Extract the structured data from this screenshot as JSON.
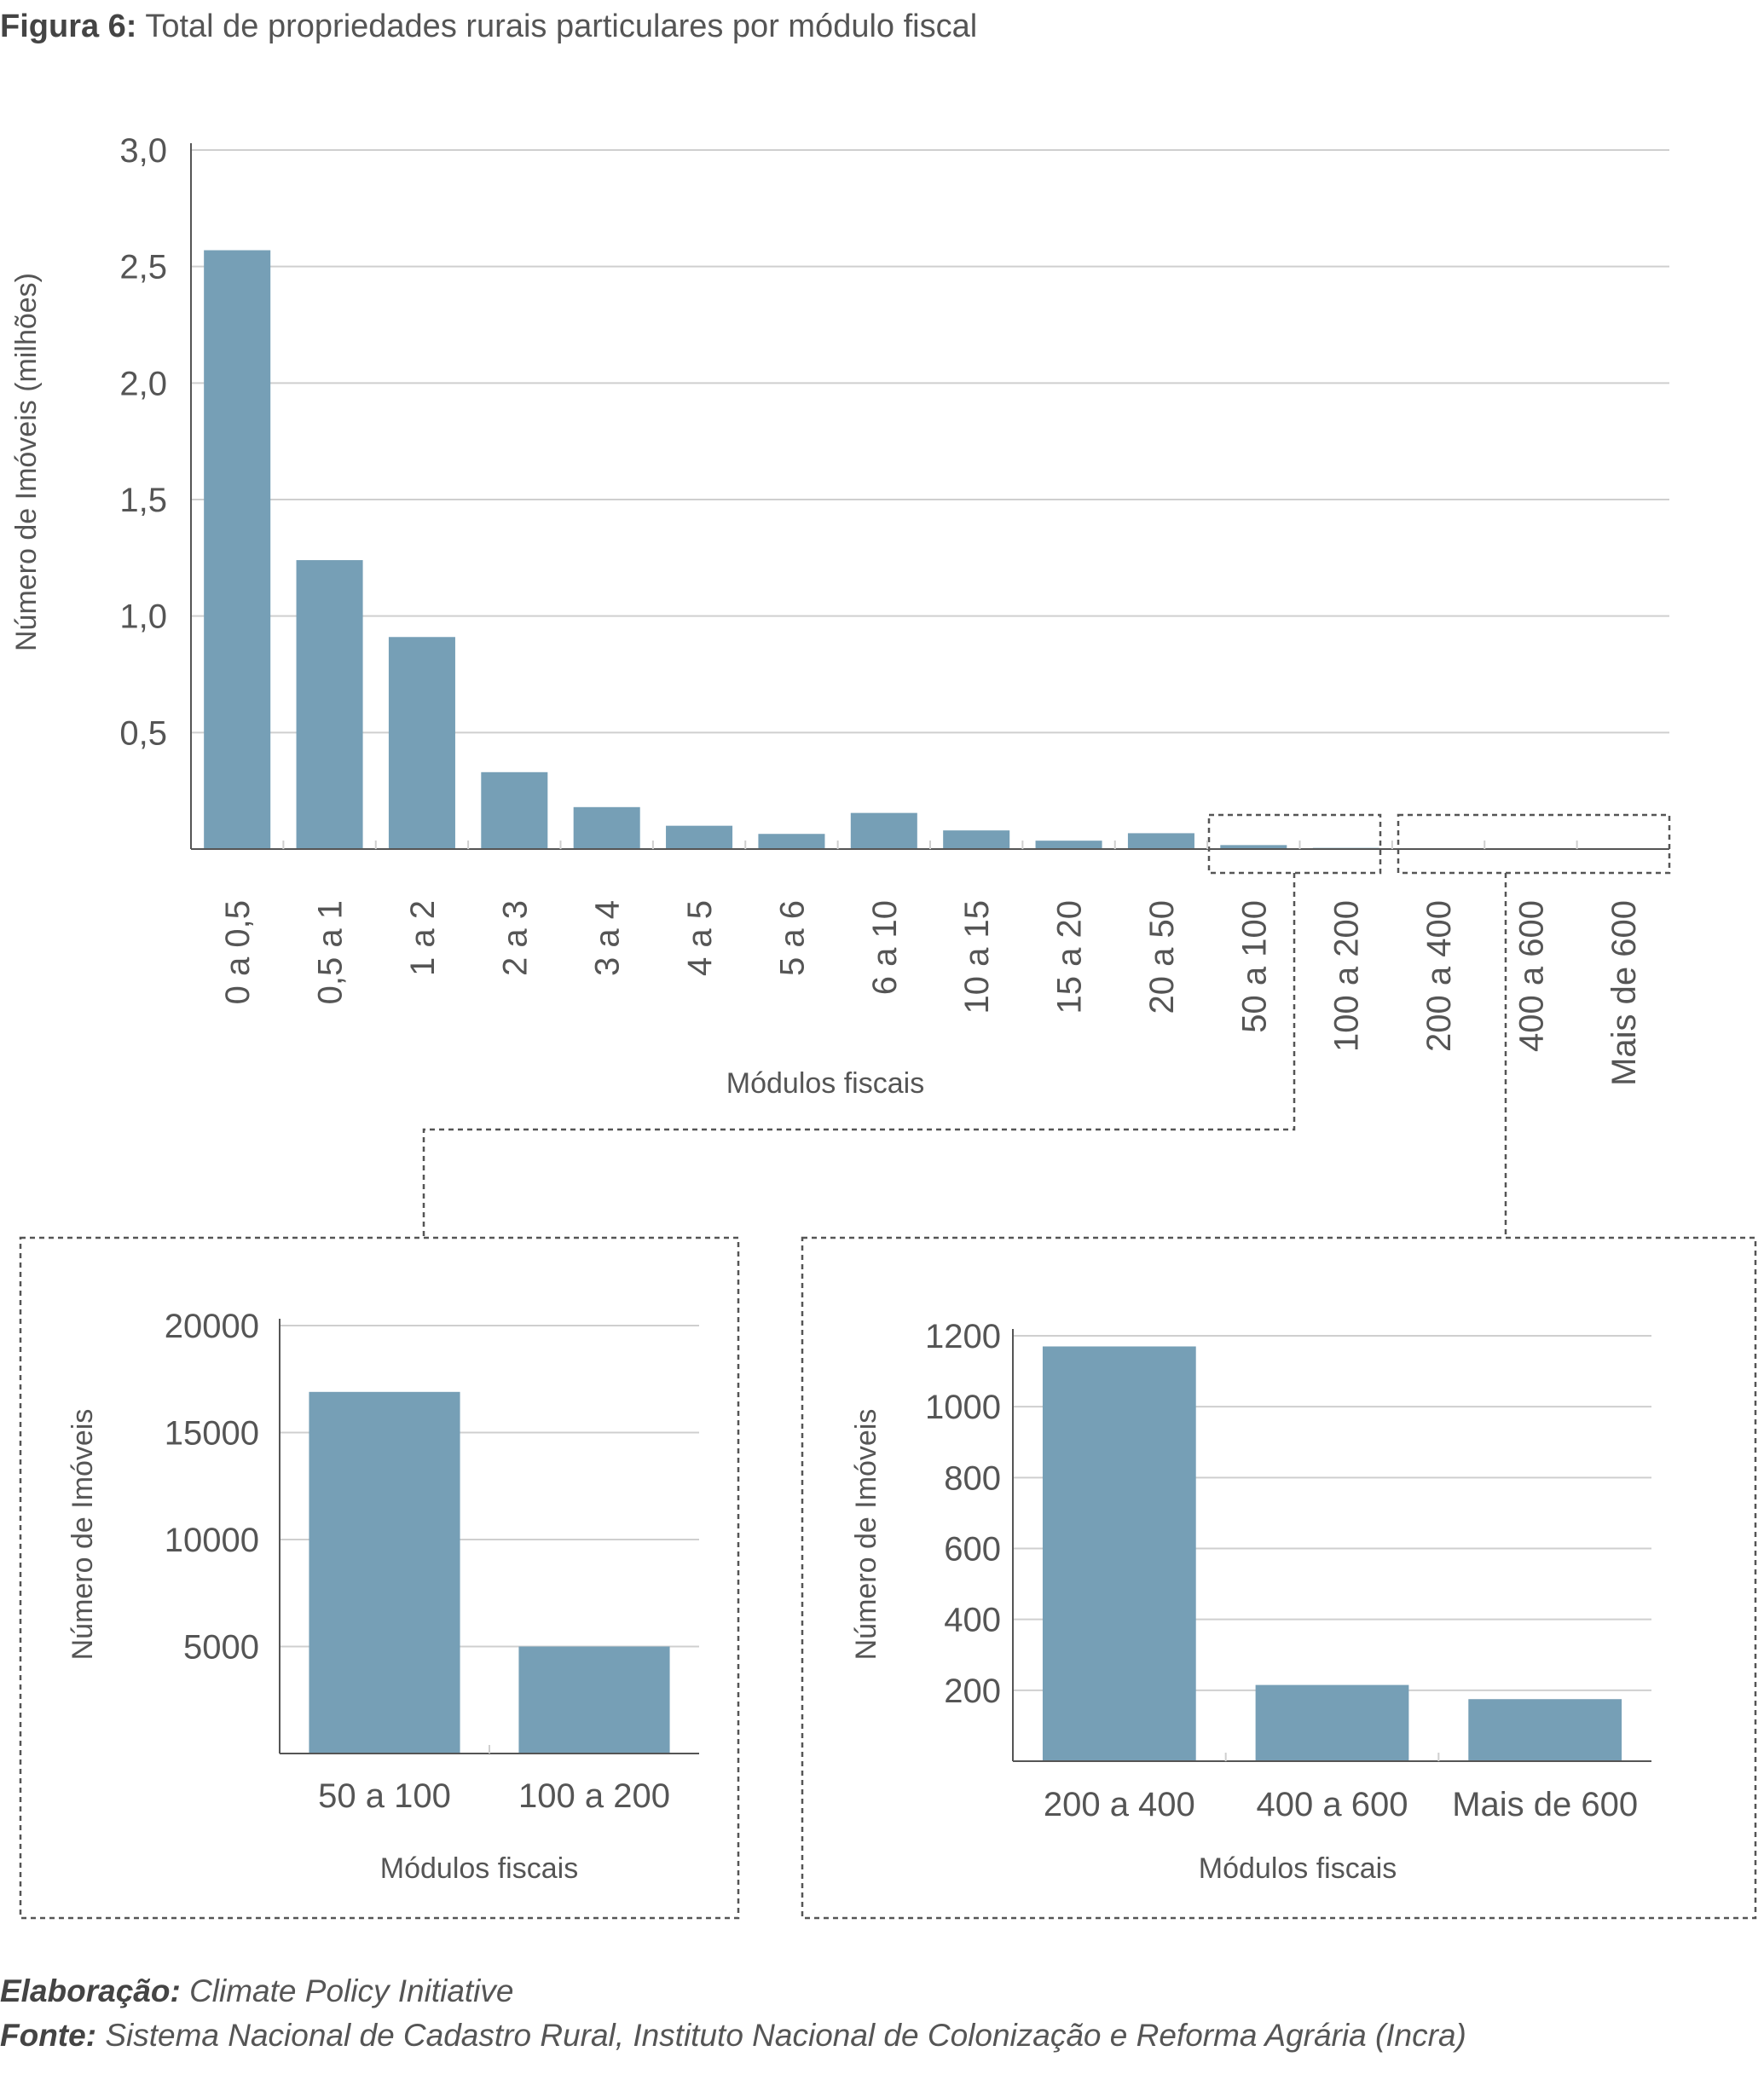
{
  "figure": {
    "label": "Figura 6:",
    "title": "Total de propriedades rurais particulares por módulo fiscal"
  },
  "colors": {
    "bar": "#769fb6",
    "grid": "#cfcfcf",
    "axis": "#555555",
    "text": "#555555"
  },
  "chart_data": [
    {
      "id": "main",
      "type": "bar",
      "title": "",
      "xlabel": "Módulos fiscais",
      "ylabel": "Número de Imóveis (milhões)",
      "ylim": [
        0,
        3.0
      ],
      "yticks": [
        0.5,
        1.0,
        1.5,
        2.0,
        2.5,
        3.0
      ],
      "ytick_labels": [
        "0,5",
        "1,0",
        "1,5",
        "2,0",
        "2,5",
        "3,0"
      ],
      "categories": [
        "0 a 0,5",
        "0,5 a 1",
        "1 a 2",
        "2 a 3",
        "3 a 4",
        "4 a 5",
        "5 a 6",
        "6 a 10",
        "10 a 15",
        "15 a 20",
        "20 a 50",
        "50 a 100",
        "100 a 200",
        "200 a 400",
        "400 a 600",
        "Mais de 600"
      ],
      "values": [
        2.57,
        1.24,
        0.91,
        0.33,
        0.18,
        0.1,
        0.065,
        0.155,
        0.08,
        0.036,
        0.068,
        0.017,
        0.005,
        0.0012,
        0.0002,
        0.0002
      ],
      "grid": true
    },
    {
      "id": "inset-left",
      "type": "bar",
      "title": "",
      "xlabel": "Módulos fiscais",
      "ylabel": "Número de Imóveis",
      "ylim": [
        0,
        20000
      ],
      "yticks": [
        5000,
        10000,
        15000,
        20000
      ],
      "ytick_labels": [
        "5000",
        "10000",
        "15000",
        "20000"
      ],
      "categories": [
        "50 a 100",
        "100 a 200"
      ],
      "values": [
        16900,
        5000
      ],
      "grid": true
    },
    {
      "id": "inset-right",
      "type": "bar",
      "title": "",
      "xlabel": "Módulos fiscais",
      "ylabel": "Número de Imóveis",
      "ylim": [
        0,
        1200
      ],
      "yticks": [
        200,
        400,
        600,
        800,
        1000,
        1200
      ],
      "ytick_labels": [
        "200",
        "400",
        "600",
        "800",
        "1000",
        "1200"
      ],
      "categories": [
        "200 a 400",
        "400 a 600",
        "Mais de 600"
      ],
      "values": [
        1170,
        215,
        175
      ],
      "grid": true
    }
  ],
  "footer": {
    "elaboracao_label": "Elaboração:",
    "elaboracao_text": "Climate Policy Initiative",
    "fonte_label": "Fonte:",
    "fonte_text": "Sistema Nacional de Cadastro Rural, Instituto Nacional de Colonização e Reforma Agrária (Incra)"
  }
}
